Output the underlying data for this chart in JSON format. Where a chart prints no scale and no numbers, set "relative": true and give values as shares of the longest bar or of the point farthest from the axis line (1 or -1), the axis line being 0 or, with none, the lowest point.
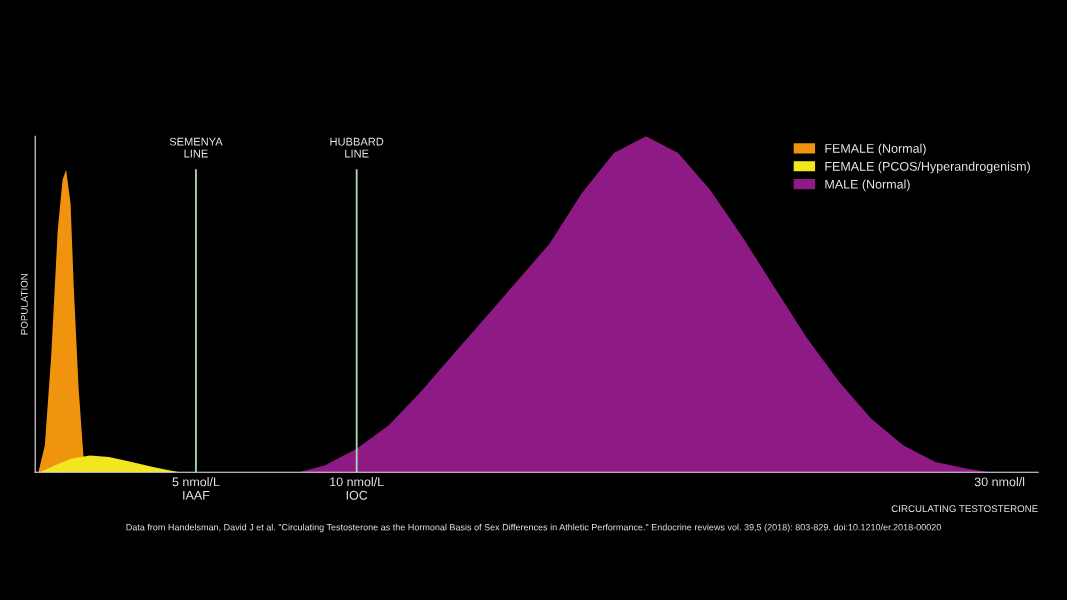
{
  "chart_data": {
    "type": "area",
    "relative": true,
    "ylabel": "POPULATION",
    "xlabel": "CIRCULATING TESTOSTERONE",
    "xlim": [
      0,
      31.2
    ],
    "xticks": [
      {
        "value": 5,
        "label": "5 nmol/L\nIAAF"
      },
      {
        "value": 10,
        "label": "10 nmol/L\nIOC"
      },
      {
        "value": 30,
        "label": "30 nmol/l"
      }
    ],
    "series": [
      {
        "name": "FEMALE (Normal)",
        "color": "#f0930f",
        "x": [
          0.1,
          0.3,
          0.5,
          0.7,
          0.85,
          0.96,
          1.1,
          1.2,
          1.35,
          1.5,
          1.55
        ],
        "values": [
          0,
          0.08,
          0.35,
          0.72,
          0.87,
          0.9,
          0.8,
          0.55,
          0.25,
          0.05,
          0
        ]
      },
      {
        "name": "FEMALE (PCOS/Hyperandrogenism)",
        "color": "#f2e61c",
        "x": [
          0.15,
          0.6,
          1.1,
          1.7,
          2.3,
          3.0,
          3.7,
          4.2,
          4.5
        ],
        "values": [
          0,
          0.02,
          0.04,
          0.05,
          0.045,
          0.03,
          0.015,
          0.005,
          0
        ]
      },
      {
        "name": "MALE (Normal)",
        "color": "#8e1a86",
        "x": [
          8.2,
          9,
          10,
          11,
          12,
          13,
          14,
          15,
          16,
          17,
          18,
          19,
          20,
          21,
          22,
          23,
          24,
          25,
          26,
          27,
          28,
          29,
          29.7
        ],
        "values": [
          0,
          0.02,
          0.07,
          0.14,
          0.24,
          0.35,
          0.46,
          0.57,
          0.68,
          0.83,
          0.95,
          1,
          0.95,
          0.84,
          0.7,
          0.55,
          0.4,
          0.27,
          0.16,
          0.08,
          0.03,
          0.01,
          0
        ]
      }
    ],
    "ref_lines": [
      {
        "axis": "x",
        "value": 5,
        "label": "SEMENYA\nLINE",
        "color": "#a8dcb4"
      },
      {
        "axis": "x",
        "value": 10,
        "label": "HUBBARD\nLINE",
        "color": "#a8dcb4"
      }
    ],
    "legend": "top right",
    "tick_labels": "x",
    "grid": false,
    "annotations": [
      "Data from Handelsman, David J et al. \"Circulating Testosterone as the Hormonal Basis of Sex Differences in Athletic Performance.\" Endocrine reviews vol. 39,5 (2018): 803-829. doi:10.1210/er.2018-00020"
    ]
  }
}
